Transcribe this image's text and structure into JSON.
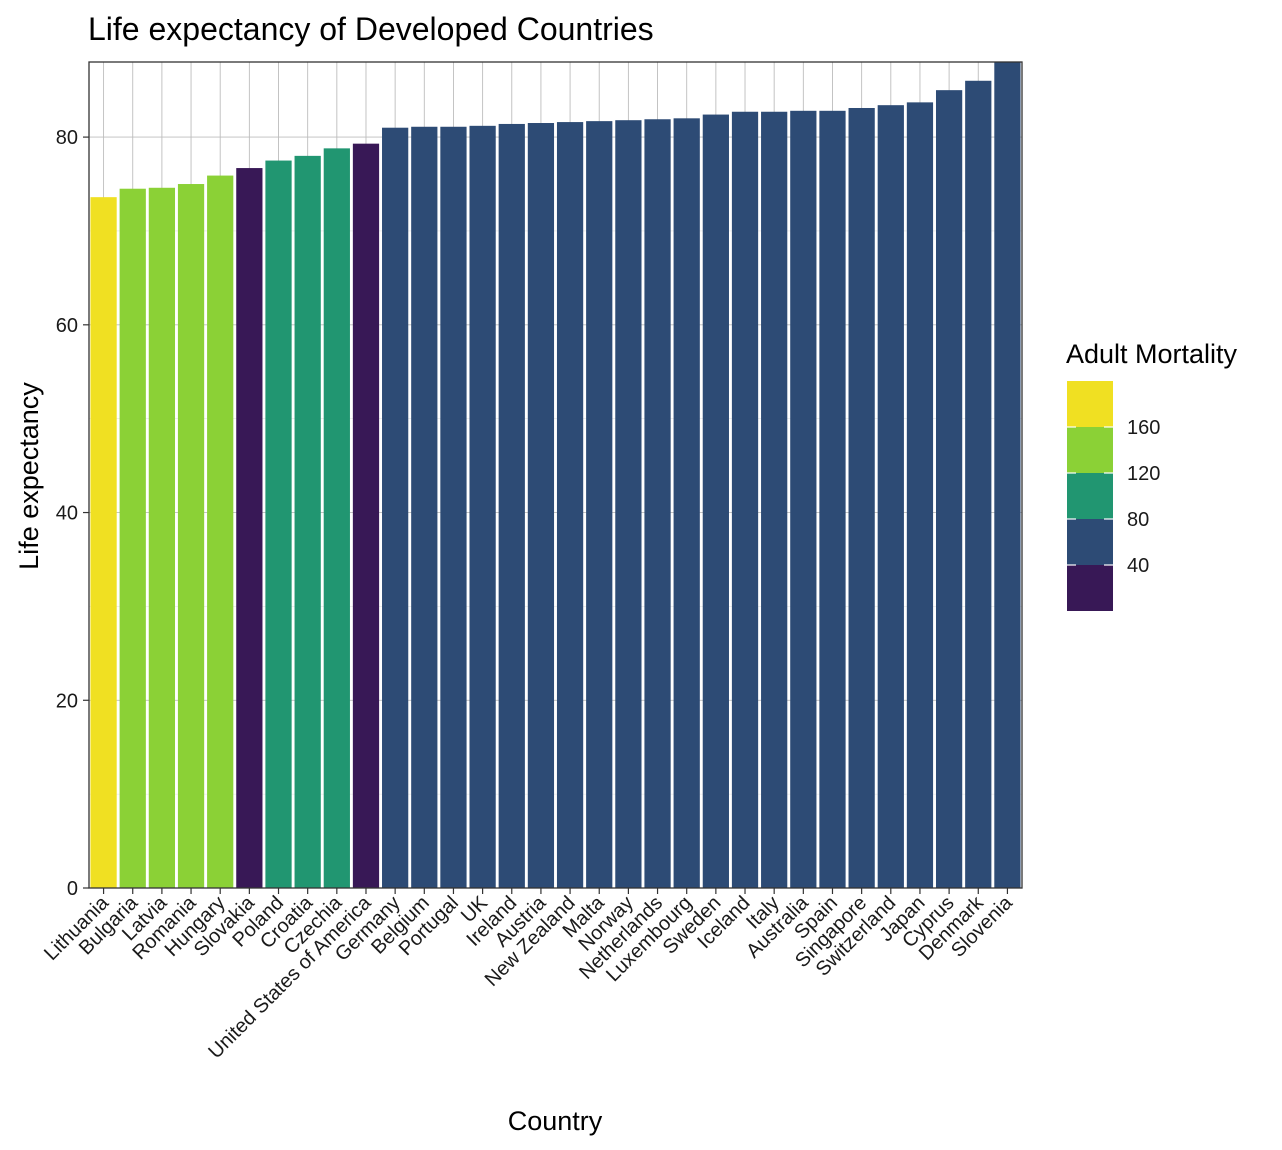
{
  "chart_data": {
    "type": "bar",
    "title": "Life expectancy of Developed Countries",
    "xlabel": "Country",
    "ylabel": "Life expectancy",
    "ylim": [
      0,
      88
    ],
    "yticks": [
      0,
      20,
      40,
      60,
      80
    ],
    "grid": true,
    "categories": [
      "Lithuania",
      "Bulgaria",
      "Latvia",
      "Romania",
      "Hungary",
      "Slovakia",
      "Poland",
      "Croatia",
      "Czechia",
      "United States of America",
      "Germany",
      "Belgium",
      "Portugal",
      "UK",
      "Ireland",
      "Austria",
      "New Zealand",
      "Malta",
      "Norway",
      "Netherlands",
      "Luxembourg",
      "Sweden",
      "Iceland",
      "Italy",
      "Australia",
      "Spain",
      "Singapore",
      "Switzerland",
      "Japan",
      "Cyprus",
      "Denmark",
      "Slovenia"
    ],
    "values": [
      73.6,
      74.5,
      74.6,
      75.0,
      75.9,
      76.7,
      77.5,
      78.0,
      78.8,
      79.3,
      81.0,
      81.1,
      81.1,
      81.2,
      81.4,
      81.5,
      81.6,
      81.7,
      81.8,
      81.9,
      82.0,
      82.4,
      82.7,
      82.7,
      82.8,
      82.8,
      83.1,
      83.4,
      83.7,
      85.0,
      86.0,
      88.0
    ],
    "colors": [
      "#f0e022",
      "#8bd136",
      "#8bd136",
      "#8bd136",
      "#8bd136",
      "#381856",
      "#219671",
      "#219671",
      "#219671",
      "#381856",
      "#2d4b75",
      "#2d4b75",
      "#2d4b75",
      "#2d4b75",
      "#2d4b75",
      "#2d4b75",
      "#2d4b75",
      "#2d4b75",
      "#2d4b75",
      "#2d4b75",
      "#2d4b75",
      "#2d4b75",
      "#2d4b75",
      "#2d4b75",
      "#2d4b75",
      "#2d4b75",
      "#2d4b75",
      "#2d4b75",
      "#2d4b75",
      "#2d4b75",
      "#2d4b75",
      "#2d4b75"
    ],
    "legend": {
      "title": "Adult Mortality",
      "placement": "right",
      "bins": [
        {
          "color": "#f0e022",
          "label": ""
        },
        {
          "color": "#8bd136",
          "label": "160"
        },
        {
          "color": "#219671",
          "label": "120"
        },
        {
          "color": "#2d4b75",
          "label": "80"
        },
        {
          "color": "#381856",
          "label": "40"
        }
      ]
    }
  }
}
